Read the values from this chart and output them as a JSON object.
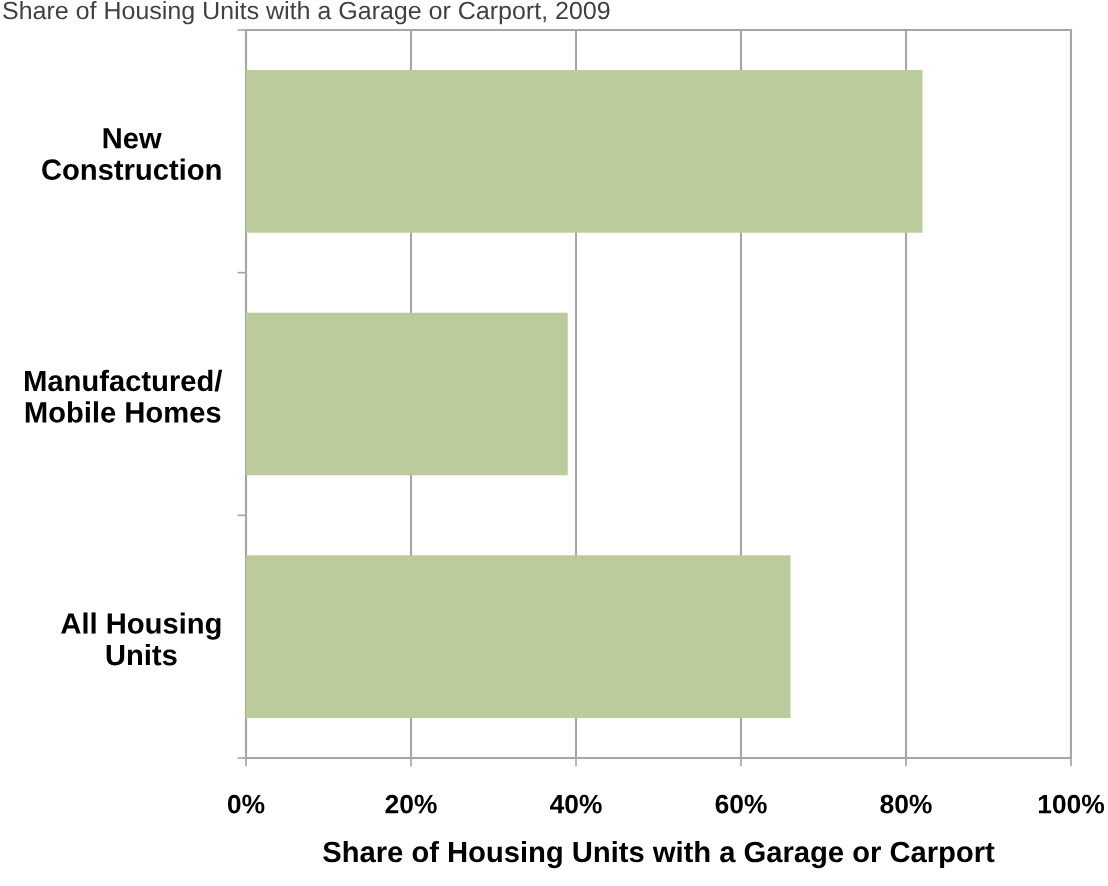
{
  "chart_data": {
    "type": "bar",
    "orientation": "horizontal",
    "title": "Share of Housing Units with a Garage or Carport, 2009",
    "xlabel": "Share of Housing Units with a Garage or Carport",
    "categories": [
      "New\nConstruction",
      "Manufactured/\nMobile Homes",
      "All Housing\nUnits"
    ],
    "values": [
      82,
      39,
      66
    ],
    "color": "#bccb9c",
    "xlim": [
      0,
      100
    ],
    "xticks": [
      {
        "value": 0,
        "label": "0%"
      },
      {
        "value": 20,
        "label": "20%"
      },
      {
        "value": 40,
        "label": "40%"
      },
      {
        "value": 60,
        "label": "60%"
      },
      {
        "value": 80,
        "label": "80%"
      },
      {
        "value": 100,
        "label": "100%"
      }
    ],
    "grid": "x"
  }
}
